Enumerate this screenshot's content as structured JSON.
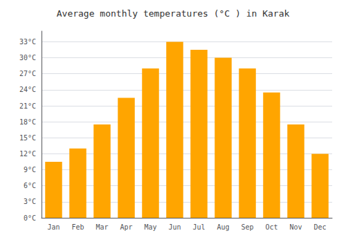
{
  "chart_data": {
    "type": "bar",
    "title": "Average monthly temperatures (°C ) in Karak",
    "categories": [
      "Jan",
      "Feb",
      "Mar",
      "Apr",
      "May",
      "Jun",
      "Jul",
      "Aug",
      "Sep",
      "Oct",
      "Nov",
      "Dec"
    ],
    "values": [
      10.5,
      13.0,
      17.5,
      22.5,
      28.0,
      33.0,
      31.5,
      30.0,
      28.0,
      23.5,
      17.5,
      12.0
    ],
    "color": "#FFA500",
    "ylim": [
      0,
      35
    ],
    "yticks": [
      {
        "value": 0,
        "label": "0°C"
      },
      {
        "value": 3,
        "label": "3°C"
      },
      {
        "value": 6,
        "label": "6°C"
      },
      {
        "value": 9,
        "label": "9°C"
      },
      {
        "value": 12,
        "label": "12°C"
      },
      {
        "value": 15,
        "label": "15°C"
      },
      {
        "value": 18,
        "label": "18°C"
      },
      {
        "value": 21,
        "label": "21°C"
      },
      {
        "value": 24,
        "label": "24°C"
      },
      {
        "value": 27,
        "label": "27°C"
      },
      {
        "value": 30,
        "label": "30°C"
      },
      {
        "value": 33,
        "label": "33°C"
      }
    ],
    "grid": true
  }
}
